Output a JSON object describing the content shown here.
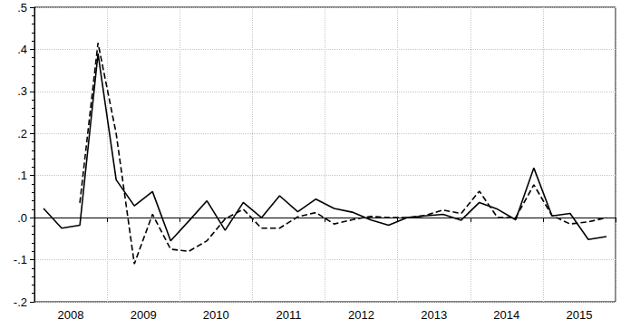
{
  "chart_data": {
    "type": "line",
    "categories": [
      "2008",
      null,
      null,
      null,
      "2009",
      null,
      null,
      null,
      "2010",
      null,
      null,
      null,
      "2011",
      null,
      null,
      null,
      "2012",
      null,
      null,
      null,
      "2013",
      null,
      null,
      null,
      "2014",
      null,
      null,
      null,
      "2015",
      null,
      null,
      null
    ],
    "series": [
      {
        "color": "#000000",
        "line_style": "solid",
        "values": [
          0.022,
          -0.025,
          -0.018,
          0.39,
          0.09,
          0.028,
          0.062,
          -0.055,
          -0.008,
          0.04,
          -0.03,
          0.036,
          0.0,
          0.052,
          0.014,
          0.044,
          0.022,
          0.013,
          -0.005,
          -0.018,
          0.0,
          0.004,
          0.008,
          -0.006,
          0.036,
          0.02,
          -0.005,
          0.118,
          0.004,
          0.01,
          -0.052,
          -0.045
        ]
      },
      {
        "color": "#000000",
        "line_style": "dashed",
        "values": [
          null,
          null,
          0.035,
          0.415,
          0.2,
          -0.11,
          0.008,
          -0.075,
          -0.08,
          -0.055,
          -0.003,
          0.02,
          -0.025,
          -0.025,
          0.002,
          0.012,
          -0.015,
          -0.005,
          0.003,
          0.0,
          0.0,
          0.005,
          0.018,
          0.01,
          0.063,
          0.0,
          0.0,
          0.078,
          0.005,
          -0.015,
          -0.01,
          0.0
        ]
      }
    ],
    "ylim": [
      -0.2,
      0.5
    ],
    "yticks": [
      {
        "value": -0.2,
        "label": "-.2"
      },
      {
        "value": -0.1,
        "label": "-.1"
      },
      {
        "value": 0.0,
        "label": ".0"
      },
      {
        "value": 0.1,
        "label": ".1"
      },
      {
        "value": 0.2,
        "label": ".2"
      },
      {
        "value": 0.3,
        "label": ".3"
      },
      {
        "value": 0.4,
        "label": ".4"
      },
      {
        "value": 0.5,
        "label": ".5"
      }
    ],
    "grid": true
  }
}
